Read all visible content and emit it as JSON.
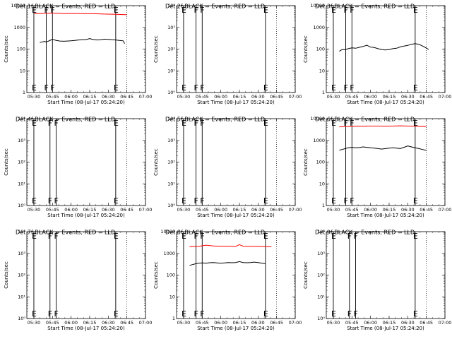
{
  "colors": {
    "events": "#000000",
    "lld": "#ff0000",
    "axes": "#000000",
    "background": "#ffffff"
  },
  "panels": [
    {
      "title": "Det 1f BLACK = Events, RED = LLD",
      "yticks": [
        "1",
        "10",
        "100",
        "1000",
        "10000"
      ],
      "ylog": [
        0,
        4
      ],
      "markers": [
        {
          "label": "E",
          "x": "05:30"
        },
        {
          "label": "F",
          "x": "05:40"
        },
        {
          "label": "F",
          "x": "05:45"
        },
        {
          "label": "E",
          "x": "06:36"
        }
      ],
      "events": [
        [
          5.58,
          2.3
        ],
        [
          5.6,
          2.32
        ],
        [
          5.64,
          2.35
        ],
        [
          5.67,
          2.33
        ],
        [
          5.71,
          2.39
        ],
        [
          5.75,
          2.45
        ],
        [
          5.8,
          2.4
        ],
        [
          5.85,
          2.37
        ],
        [
          5.9,
          2.36
        ],
        [
          5.95,
          2.37
        ],
        [
          6.0,
          2.38
        ],
        [
          6.05,
          2.4
        ],
        [
          6.1,
          2.42
        ],
        [
          6.15,
          2.43
        ],
        [
          6.2,
          2.44
        ],
        [
          6.25,
          2.48
        ],
        [
          6.3,
          2.44
        ],
        [
          6.35,
          2.42
        ],
        [
          6.4,
          2.43
        ],
        [
          6.45,
          2.46
        ],
        [
          6.5,
          2.45
        ],
        [
          6.55,
          2.43
        ],
        [
          6.6,
          2.42
        ],
        [
          6.65,
          2.4
        ],
        [
          6.7,
          2.38
        ],
        [
          6.72,
          2.25
        ]
      ],
      "lld": [
        [
          5.5,
          3.64
        ],
        [
          5.6,
          3.64
        ],
        [
          5.7,
          3.66
        ],
        [
          5.8,
          3.65
        ],
        [
          5.9,
          3.64
        ],
        [
          6.0,
          3.64
        ],
        [
          6.1,
          3.64
        ],
        [
          6.2,
          3.63
        ],
        [
          6.3,
          3.63
        ],
        [
          6.4,
          3.62
        ],
        [
          6.5,
          3.61
        ],
        [
          6.6,
          3.6
        ],
        [
          6.7,
          3.59
        ],
        [
          6.75,
          3.58
        ]
      ]
    },
    {
      "title": "Det 2f BLACK = Events, RED = LLD",
      "yticks": [
        "10⁰",
        "10¹",
        "10²",
        "10³",
        "10⁴"
      ],
      "ylog": [
        0,
        4
      ],
      "markers": [
        {
          "label": "E",
          "x": "05:30"
        },
        {
          "label": "F",
          "x": "05:40"
        },
        {
          "label": "F",
          "x": "05:45"
        },
        {
          "label": "E",
          "x": "06:36"
        }
      ],
      "events": [],
      "lld": []
    },
    {
      "title": "Det 3f BLACK = Events, RED = LLD",
      "yticks": [
        "1",
        "10",
        "100",
        "1000",
        "10000"
      ],
      "ylog": [
        0,
        4
      ],
      "markers": [
        {
          "label": "E",
          "x": "05:30"
        },
        {
          "label": "F",
          "x": "05:40"
        },
        {
          "label": "F",
          "x": "05:45"
        },
        {
          "label": "E",
          "x": "06:36"
        }
      ],
      "events": [
        [
          5.58,
          1.9
        ],
        [
          5.62,
          1.98
        ],
        [
          5.66,
          1.97
        ],
        [
          5.7,
          2.02
        ],
        [
          5.75,
          2.06
        ],
        [
          5.8,
          2.04
        ],
        [
          5.85,
          2.08
        ],
        [
          5.9,
          2.12
        ],
        [
          5.95,
          2.18
        ],
        [
          6.0,
          2.09
        ],
        [
          6.05,
          2.07
        ],
        [
          6.1,
          2.02
        ],
        [
          6.15,
          1.98
        ],
        [
          6.2,
          1.96
        ],
        [
          6.25,
          1.98
        ],
        [
          6.3,
          2.02
        ],
        [
          6.35,
          2.04
        ],
        [
          6.4,
          2.1
        ],
        [
          6.45,
          2.14
        ],
        [
          6.5,
          2.17
        ],
        [
          6.55,
          2.22
        ],
        [
          6.6,
          2.25
        ],
        [
          6.65,
          2.22
        ],
        [
          6.7,
          2.14
        ],
        [
          6.75,
          2.05
        ],
        [
          6.78,
          1.98
        ]
      ],
      "lld": []
    },
    {
      "title": "Det 4f BLACK = Events, RED = LLD",
      "yticks": [
        "10⁰",
        "10¹",
        "10²",
        "10³",
        "10⁴"
      ],
      "ylog": [
        0,
        4
      ],
      "markers": [
        {
          "label": "E",
          "x": "05:30"
        },
        {
          "label": "F",
          "x": "05:43"
        },
        {
          "label": "F",
          "x": "05:48"
        },
        {
          "label": "E",
          "x": "06:36"
        }
      ],
      "events": [],
      "lld": []
    },
    {
      "title": "Det 5f BLACK = Events, RED = LLD",
      "yticks": [
        "10⁰",
        "10¹",
        "10²",
        "10³",
        "10⁴"
      ],
      "ylog": [
        0,
        4
      ],
      "markers": [
        {
          "label": "E",
          "x": "05:30"
        },
        {
          "label": "F",
          "x": "05:40"
        },
        {
          "label": "F",
          "x": "05:45"
        },
        {
          "label": "E",
          "x": "06:36"
        }
      ],
      "events": [],
      "lld": []
    },
    {
      "title": "Det 6f BLACK = Events, RED = LLD",
      "yticks": [
        "1",
        "10",
        "100",
        "1000",
        "10000"
      ],
      "ylog": [
        0,
        4
      ],
      "markers": [
        {
          "label": "E",
          "x": "05:30"
        },
        {
          "label": "F",
          "x": "05:40"
        },
        {
          "label": "F",
          "x": "05:45"
        },
        {
          "label": "E",
          "x": "06:36"
        }
      ],
      "events": [
        [
          5.58,
          2.55
        ],
        [
          5.62,
          2.58
        ],
        [
          5.66,
          2.62
        ],
        [
          5.7,
          2.66
        ],
        [
          5.75,
          2.68
        ],
        [
          5.8,
          2.66
        ],
        [
          5.85,
          2.67
        ],
        [
          5.9,
          2.7
        ],
        [
          5.95,
          2.68
        ],
        [
          6.0,
          2.66
        ],
        [
          6.05,
          2.64
        ],
        [
          6.1,
          2.62
        ],
        [
          6.15,
          2.6
        ],
        [
          6.2,
          2.62
        ],
        [
          6.25,
          2.64
        ],
        [
          6.3,
          2.66
        ],
        [
          6.35,
          2.64
        ],
        [
          6.4,
          2.62
        ],
        [
          6.45,
          2.68
        ],
        [
          6.5,
          2.74
        ],
        [
          6.55,
          2.7
        ],
        [
          6.6,
          2.66
        ],
        [
          6.65,
          2.62
        ],
        [
          6.7,
          2.58
        ],
        [
          6.75,
          2.54
        ]
      ],
      "lld": [
        [
          5.58,
          3.62
        ],
        [
          5.6,
          3.63
        ],
        [
          5.7,
          3.64
        ],
        [
          5.8,
          3.65
        ],
        [
          5.9,
          3.65
        ],
        [
          6.0,
          3.66
        ],
        [
          6.1,
          3.66
        ],
        [
          6.2,
          3.65
        ],
        [
          6.3,
          3.66
        ],
        [
          6.4,
          3.67
        ],
        [
          6.5,
          3.66
        ],
        [
          6.6,
          3.65
        ],
        [
          6.7,
          3.64
        ],
        [
          6.75,
          3.64
        ]
      ]
    },
    {
      "title": "Det 7f BLACK = Events, RED = LLD",
      "yticks": [
        "10⁰",
        "10¹",
        "10²",
        "10³",
        "10⁴"
      ],
      "ylog": [
        0,
        4
      ],
      "markers": [
        {
          "label": "E",
          "x": "05:30"
        },
        {
          "label": "F",
          "x": "05:43"
        },
        {
          "label": "F",
          "x": "05:48"
        },
        {
          "label": "E",
          "x": "06:36"
        }
      ],
      "events": [],
      "lld": []
    },
    {
      "title": "Det 8f BLACK = Events, RED = LLD",
      "yticks": [
        "1",
        "10",
        "100",
        "1000",
        "10000"
      ],
      "ylog": [
        0,
        4
      ],
      "markers": [
        {
          "label": "E",
          "x": "05:30"
        },
        {
          "label": "F",
          "x": "05:40"
        },
        {
          "label": "F",
          "x": "05:45"
        },
        {
          "label": "E",
          "x": "06:36"
        }
      ],
      "events": [
        [
          5.58,
          2.45
        ],
        [
          5.62,
          2.48
        ],
        [
          5.66,
          2.52
        ],
        [
          5.7,
          2.55
        ],
        [
          5.75,
          2.56
        ],
        [
          5.8,
          2.55
        ],
        [
          5.85,
          2.57
        ],
        [
          5.9,
          2.58
        ],
        [
          5.95,
          2.56
        ],
        [
          6.0,
          2.55
        ],
        [
          6.05,
          2.56
        ],
        [
          6.1,
          2.58
        ],
        [
          6.15,
          2.57
        ],
        [
          6.2,
          2.58
        ],
        [
          6.25,
          2.62
        ],
        [
          6.3,
          2.58
        ],
        [
          6.35,
          2.57
        ],
        [
          6.4,
          2.58
        ],
        [
          6.45,
          2.6
        ],
        [
          6.5,
          2.58
        ],
        [
          6.55,
          2.55
        ],
        [
          6.6,
          2.53
        ]
      ],
      "lld": [
        [
          5.58,
          3.3
        ],
        [
          5.6,
          3.31
        ],
        [
          5.7,
          3.32
        ],
        [
          5.8,
          3.38
        ],
        [
          5.9,
          3.34
        ],
        [
          6.0,
          3.33
        ],
        [
          6.1,
          3.33
        ],
        [
          6.2,
          3.32
        ],
        [
          6.25,
          3.4
        ],
        [
          6.3,
          3.33
        ],
        [
          6.4,
          3.32
        ],
        [
          6.5,
          3.32
        ],
        [
          6.6,
          3.31
        ],
        [
          6.68,
          3.3
        ]
      ]
    },
    {
      "title": "Det 9f BLACK = Events, RED = LLD",
      "yticks": [
        "10⁰",
        "10¹",
        "10²",
        "10³",
        "10⁴"
      ],
      "ylog": [
        0,
        4
      ],
      "markers": [
        {
          "label": "E",
          "x": "05:30"
        },
        {
          "label": "F",
          "x": "05:43"
        },
        {
          "label": "F",
          "x": "05:48"
        },
        {
          "label": "E",
          "x": "06:36"
        }
      ],
      "events": [],
      "lld": []
    }
  ],
  "xticks": [
    "05:30",
    "05:45",
    "06:00",
    "06:15",
    "06:30",
    "06:45",
    "07:00"
  ],
  "xlabel": "Start Time (08-Jul-17 05:24:20)",
  "ylabel": "Counts/sec",
  "dotted_x": [
    "06:45",
    "07:00"
  ],
  "chart_data": {
    "type": "line",
    "title": "",
    "xlabel": "Start Time (08-Jul-17 05:24:20)",
    "ylabel": "Counts/sec",
    "xlim": [
      "05:24:20",
      "07:00"
    ],
    "ylim": [
      1,
      10000
    ],
    "yscale": "log",
    "grid": false,
    "legend": "none",
    "series": [
      {
        "name": "Det 1f BLACK = Events",
        "approx_level": 250
      },
      {
        "name": "Det 1f RED = LLD",
        "approx_level": 4300
      },
      {
        "name": "Det 3f BLACK = Events",
        "approx_level": 120
      },
      {
        "name": "Det 6f BLACK = Events",
        "approx_level": 450
      },
      {
        "name": "Det 6f RED = LLD",
        "approx_level": 4500
      },
      {
        "name": "Det 8f BLACK = Events",
        "approx_level": 380
      },
      {
        "name": "Det 8f RED = LLD",
        "approx_level": 2100
      }
    ]
  }
}
